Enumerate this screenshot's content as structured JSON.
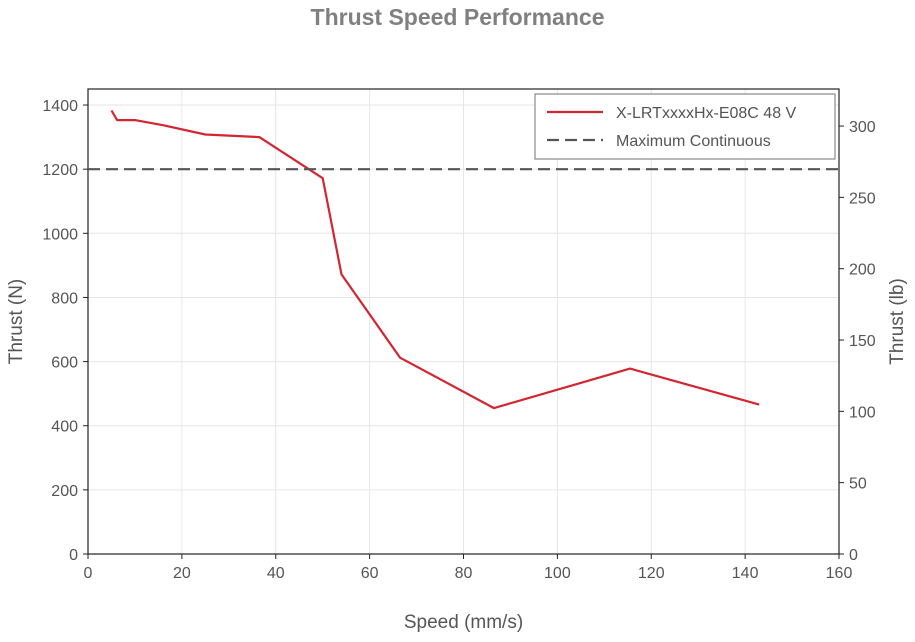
{
  "chart_data": {
    "type": "line",
    "title": "Thrust Speed Performance",
    "xlabel": "Speed (mm/s)",
    "ylabel": "Thrust (N)",
    "y2label": "Thrust (lb)",
    "xlim": [
      0,
      160
    ],
    "ylim": [
      0,
      1450
    ],
    "y2lim": [
      0,
      325.97
    ],
    "xticks": [
      0,
      20,
      40,
      60,
      80,
      100,
      120,
      140,
      160
    ],
    "yticks": [
      0,
      200,
      400,
      600,
      800,
      1000,
      1200,
      1400
    ],
    "y2ticks": [
      0,
      50,
      100,
      150,
      200,
      250,
      300
    ],
    "grid": true,
    "legend_position": "top-right",
    "series": [
      {
        "name": "X-LRTxxxxHx-E08C 48 V",
        "color": "#d22630",
        "style": "solid",
        "x": [
          5,
          6.2,
          10,
          16,
          25,
          36.5,
          50,
          54,
          66.5,
          86.5,
          115.5,
          143
        ],
        "y": [
          1383,
          1353,
          1353,
          1337,
          1308,
          1300,
          1172,
          872,
          612,
          455,
          578,
          466
        ]
      },
      {
        "name": "Maximum Continuous",
        "color": "#555555",
        "style": "dashed",
        "x": [
          0,
          160
        ],
        "y": [
          1200,
          1200
        ]
      }
    ]
  }
}
